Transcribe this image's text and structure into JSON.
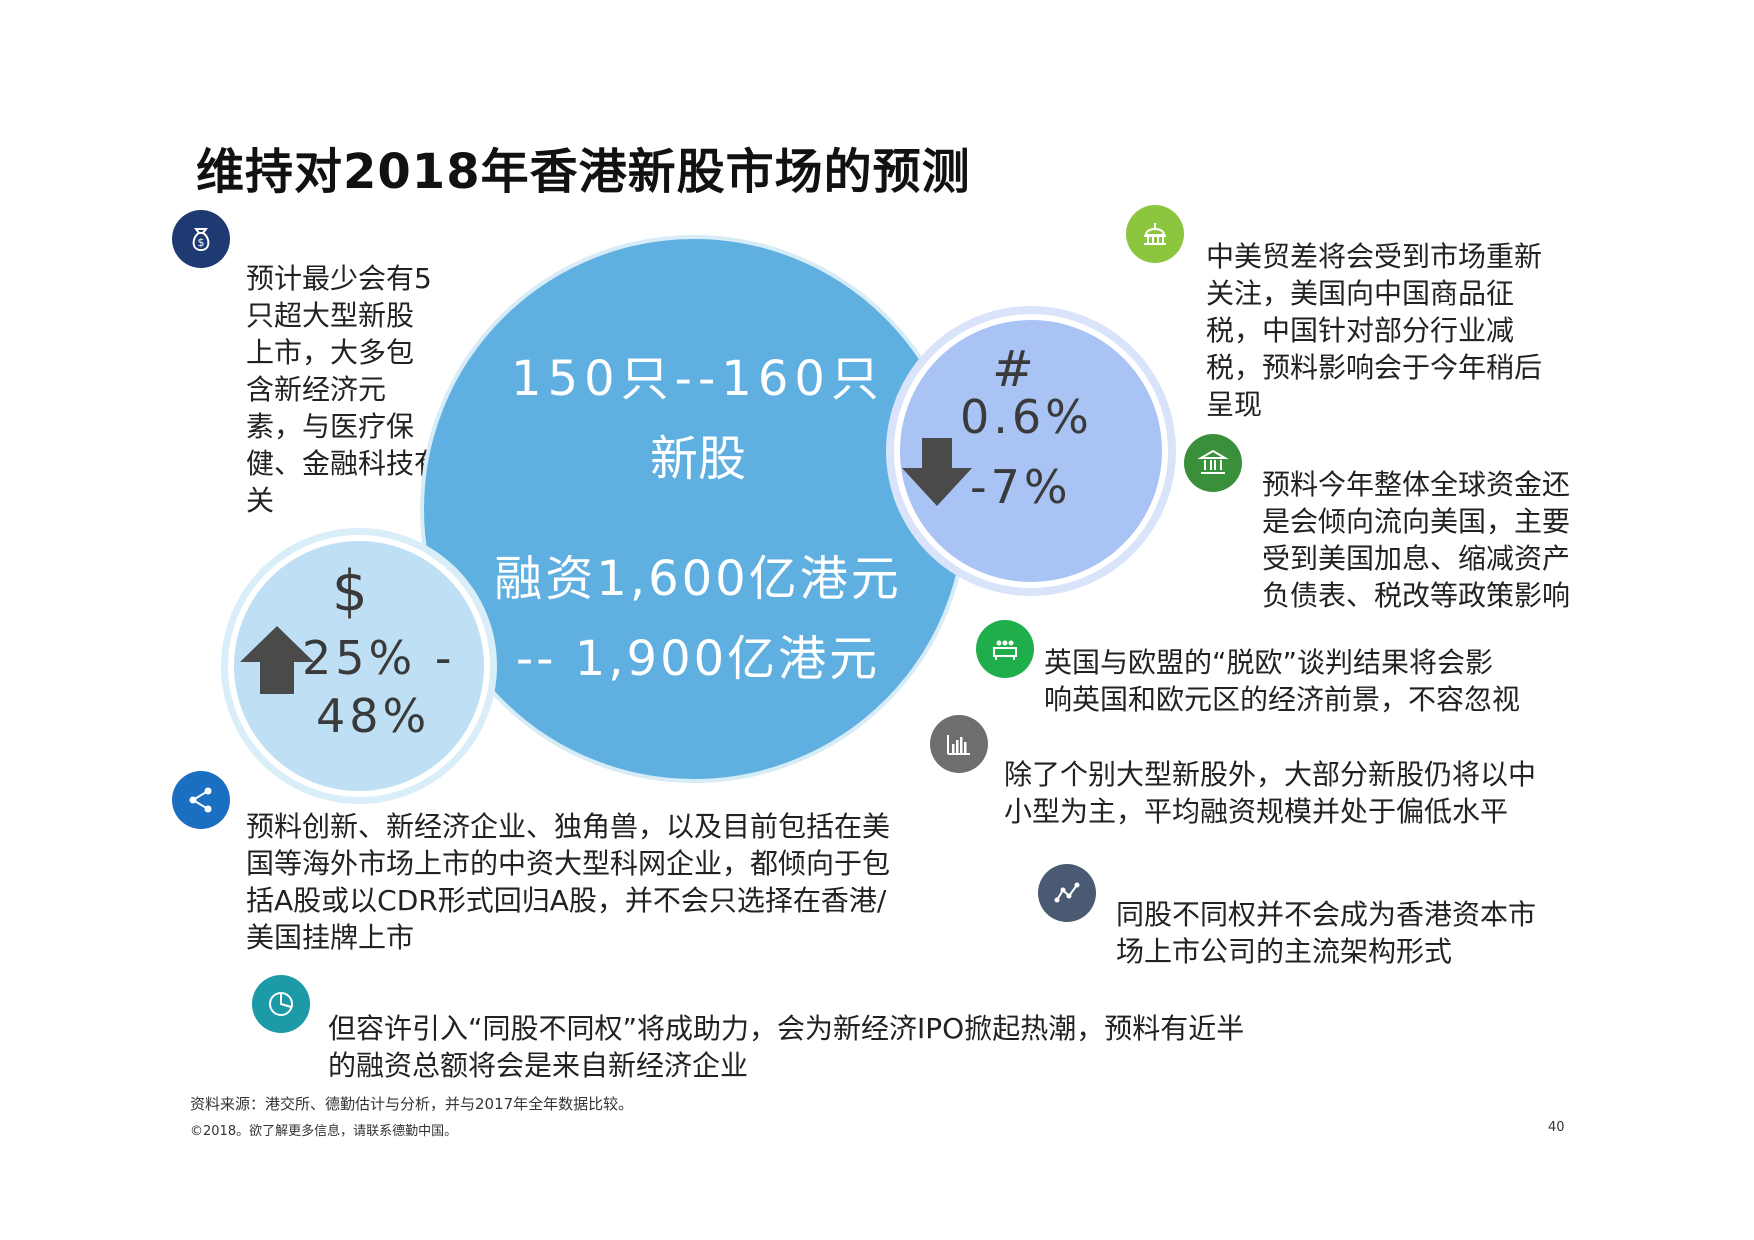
{
  "title": "维持对2018年香港新股市场的预测",
  "big_circle": {
    "line1": "150只--160只",
    "line2": "新股",
    "line3": "融资1,600亿港元",
    "line4": "-- 1,900亿港元"
  },
  "right_circle": {
    "symbol": "#",
    "value1": "0.6%",
    "value2": "-7%",
    "arrow": "down-arrow-icon"
  },
  "left_circle": {
    "symbol": "$",
    "value1": "25% -",
    "value2": "48%",
    "arrow": "up-arrow-icon"
  },
  "left_top_text": [
    "预计最少会有5",
    "只超大型新股",
    "上市，大多包",
    "含新经济元",
    "素，与医疗保",
    "健、金融科技有",
    "关"
  ],
  "left_mid_text": [
    "预料创新、新经济企业、独角兽，以及目前包括在美",
    "国等海外市场上市的中资大型科网企业，都倾向于包",
    "括A股或以CDR形式回归A股，并不会只选择在香港/",
    "美国挂牌上市"
  ],
  "bottom_text": [
    "但容许引入“同股不同权”将成助力，会为新经济IPO掀起热潮，预料有近半",
    "的融资总额将会是来自新经济企业"
  ],
  "right_texts": [
    [
      "中美贸差将会受到市场重新",
      "关注，美国向中国商品征",
      "税，中国针对部分行业减",
      "税，预料影响会于今年稍后",
      "呈现"
    ],
    [
      "预料今年整体全球资金还",
      "是会倾向流向美国，主要",
      "受到美国加息、缩减资产",
      "负债表、税改等政策影响"
    ],
    [
      "英国与欧盟的“脱欧”谈判结果将会影",
      "响英国和欧元区的经济前景，不容忽视"
    ],
    [
      "除了个别大型新股外，大部分新股仍将以中",
      "小型为主，平均融资规模并处于偏低水平"
    ],
    [
      "同股不同权并不会成为香港资本市",
      "场上市公司的主流架构形式"
    ]
  ],
  "footer": {
    "source": "资料来源：港交所、德勤估计与分析，并与2017年全年数据比较。",
    "copyright": "©2018。欲了解更多信息，请联系德勤中国。",
    "page": "40"
  },
  "icons": {
    "money_bag": "money-bag-icon",
    "share": "share-icon",
    "pie": "pie-chart-icon",
    "capitol": "capitol-icon",
    "bank": "bank-icon",
    "meeting": "meeting-icon",
    "bar_chart": "bar-chart-icon",
    "line_chart": "line-chart-icon"
  },
  "colors": {
    "navy": "#1f3a73",
    "blue": "#1a6fc0",
    "teal": "#1d9aa8",
    "lime": "#8cc63f",
    "green": "#3a8f3a",
    "bright_green": "#1fae4b",
    "gray": "#6e6e6e",
    "slate": "#4a5a72"
  }
}
